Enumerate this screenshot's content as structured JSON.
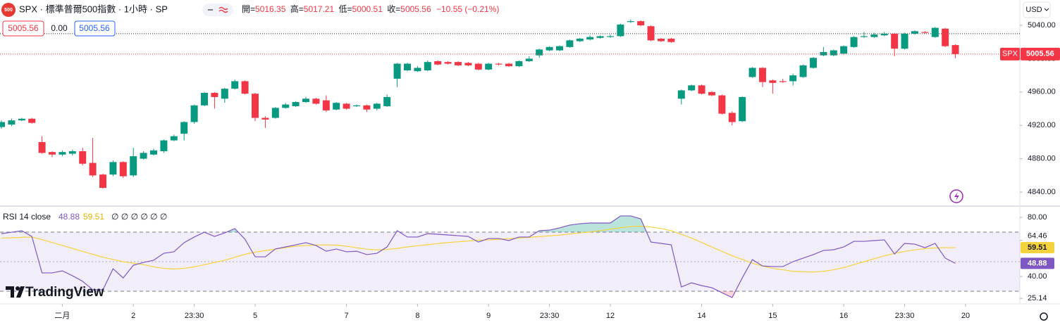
{
  "toolbar": {
    "logo": "500",
    "symbol": "SPX · 標準普爾500指數 · 1小時 · SP",
    "ohlc_labels": [
      "開=",
      "高=",
      "低=",
      "收="
    ],
    "change": "−10.55 (−0.21%)",
    "spread": "0.00",
    "currency": "USD",
    "brand": "TradingView"
  },
  "chart_data": [
    {
      "type": "candlestick",
      "price_tag_label": "SPX",
      "up_color": "#089981",
      "down_color": "#f23645",
      "open": [
        4918,
        4921,
        4926,
        4928,
        4900,
        4888,
        4885,
        4886,
        4889,
        4875,
        4861,
        4861,
        4876,
        4860,
        4880,
        4885,
        4889,
        4902,
        4910,
        4924,
        4944,
        4959,
        4952,
        4964,
        4973,
        4958,
        4929,
        4929,
        4941,
        4943,
        4948,
        4952,
        4950,
        4939,
        4946,
        4943,
        4944,
        4940,
        4943,
        4976,
        4986,
        4985,
        4986,
        4997,
        4996,
        4996,
        4995,
        4994,
        4987,
        4994,
        4994,
        4991,
        4997,
        5004,
        5010,
        5010,
        5014,
        5021,
        5023,
        5025,
        5026,
        5027,
        5044,
        5045,
        5039,
        5024,
        5024,
        4952,
        4962,
        4968,
        4960,
        4956,
        4935,
        4925,
        4978,
        4989,
        4974,
        4973,
        4973,
        4978,
        4989,
        5004,
        5004,
        5006,
        5014,
        5026,
        5026,
        5028,
        5030,
        5012,
        5030,
        5032,
        5026,
        5036,
        5016.35
      ],
      "high": [
        4926,
        4928,
        4929,
        4929,
        4907,
        4889,
        4890,
        4891,
        4893,
        4905,
        4862,
        4878,
        4877,
        4893,
        4889,
        4892,
        4903,
        4909,
        4925,
        4945,
        4960,
        4960,
        4965,
        4975,
        4974,
        4959,
        4931,
        4942,
        4947,
        4949,
        4954,
        4953,
        4956,
        4948,
        4947,
        4945,
        4945,
        4947,
        4957,
        4995,
        4995,
        4991,
        4998,
        4998,
        4997,
        4997,
        4996,
        4995,
        4995,
        4995,
        4995,
        4998,
        5003,
        5012,
        5015,
        5016,
        5023,
        5025,
        5028,
        5028,
        5029,
        5042,
        5047,
        5046,
        5040,
        5025,
        5025,
        4963,
        4969,
        4969,
        4961,
        4957,
        4937,
        4955,
        4990,
        4990,
        4975,
        4976,
        4982,
        4993,
        5002,
        5014,
        5011,
        5016,
        5027,
        5032,
        5031,
        5032,
        5031,
        5031,
        5034,
        5033,
        5038,
        5037,
        5017.21
      ],
      "low": [
        4916,
        4919,
        4925,
        4922,
        4886,
        4882,
        4883,
        4884,
        4872,
        4858,
        4844,
        4859,
        4857,
        4858,
        4879,
        4884,
        4887,
        4901,
        4902,
        4922,
        4943,
        4940,
        4947,
        4963,
        4957,
        4925,
        4917,
        4928,
        4940,
        4942,
        4947,
        4945,
        4936,
        4938,
        4939,
        4942,
        4936,
        4938,
        4942,
        4966,
        4985,
        4984,
        4985,
        4992,
        4993,
        4991,
        4991,
        4986,
        4986,
        4992,
        4990,
        4990,
        4996,
        5001,
        5009,
        5009,
        5013,
        5020,
        5022,
        5024,
        5025,
        5026,
        5043,
        5039,
        5021,
        5020,
        5019,
        4945,
        4961,
        4957,
        4955,
        4933,
        4920,
        4924,
        4977,
        4966,
        4958,
        4971,
        4968,
        4977,
        4988,
        5003,
        5003,
        5005,
        5013,
        5025,
        5025,
        5027,
        5003,
        5011,
        5029,
        5030,
        5025,
        5014,
        5000.51
      ],
      "close": [
        4924,
        4926,
        4928,
        4923,
        4887,
        4885,
        4888,
        4889,
        4874,
        4860,
        4845,
        4876,
        4859,
        4883,
        4887,
        4890,
        4902,
        4907,
        4924,
        4944,
        4959,
        4954,
        4964,
        4973,
        4958,
        4929,
        4927,
        4941,
        4945,
        4948,
        4952,
        4946,
        4938,
        4947,
        4940,
        4944,
        4939,
        4946,
        4954,
        4994,
        4994,
        4989,
        4996,
        4993,
        4994,
        4992,
        4992,
        4987,
        4994,
        4993,
        4991,
        4997,
        5000,
        5011,
        5014,
        5015,
        5022,
        5024,
        5026,
        5027,
        5027,
        5041,
        5045,
        5040,
        5022,
        5021,
        5020,
        4962,
        4968,
        4958,
        4956,
        4934,
        4924,
        4954,
        4989,
        4972,
        4971,
        4972,
        4980,
        4992,
        5001,
        5008,
        5010,
        5015,
        5026,
        5027,
        5029,
        5030,
        5012,
        5030,
        5033,
        5031,
        5037,
        5015,
        5005.56
      ],
      "reference_line": 5030,
      "xlim": [
        -0.14,
        100.35
      ],
      "xticks": [
        {
          "value": 6,
          "label": "二月"
        },
        {
          "value": 13,
          "label": "2"
        },
        {
          "value": 19,
          "label": "23:30"
        },
        {
          "value": 25,
          "label": "5"
        },
        {
          "value": 34,
          "label": "7"
        },
        {
          "value": 41,
          "label": "8"
        },
        {
          "value": 48,
          "label": "9"
        },
        {
          "value": 54,
          "label": "23:30"
        },
        {
          "value": 60,
          "label": "12"
        },
        {
          "value": 69,
          "label": "14"
        },
        {
          "value": 76,
          "label": "15"
        },
        {
          "value": 83,
          "label": "16"
        },
        {
          "value": 89,
          "label": "23:30"
        },
        {
          "value": 95,
          "label": "20"
        }
      ],
      "ylim": [
        4824,
        5070.4
      ],
      "yticks": [
        {
          "value": 5040,
          "label": "5040.00"
        },
        {
          "value": 5000,
          "label": "5000.00"
        },
        {
          "value": 4960,
          "label": "4960.00"
        },
        {
          "value": 4920,
          "label": "4920.00"
        },
        {
          "value": 4880,
          "label": "4880.00"
        },
        {
          "value": 4840,
          "label": "4840.00"
        }
      ]
    },
    {
      "type": "line",
      "title": "RSI 14 close",
      "legend_extra": "∅ ∅ ∅ ∅ ∅ ∅",
      "series": [
        {
          "color": "#7e57c2",
          "values": [
            69,
            70,
            71,
            67.1,
            42.4,
            42.4,
            43.8,
            40.5,
            36.7,
            31,
            31,
            45.2,
            39,
            47.6,
            49.5,
            51,
            55.7,
            56.7,
            62.9,
            66.7,
            70,
            67.1,
            69.5,
            72.4,
            65.2,
            53.3,
            53.3,
            58.6,
            60,
            61.4,
            62.9,
            61,
            57.1,
            58.6,
            56.7,
            57.1,
            54.8,
            55.7,
            60,
            71,
            66.7,
            66.7,
            69,
            68.6,
            68.1,
            67.6,
            67.1,
            63.3,
            65.7,
            65.7,
            64.3,
            66.7,
            66.7,
            71,
            71.4,
            72.9,
            74.8,
            75.7,
            76.2,
            76.2,
            76.2,
            81,
            81,
            79,
            63.3,
            62.4,
            61.4,
            32.9,
            35.7,
            33.8,
            32.4,
            29,
            25.7,
            39,
            51.4,
            47.1,
            46.7,
            46.7,
            50,
            52.4,
            54.8,
            57.6,
            58.1,
            60,
            63.8,
            63.8,
            64.3,
            64.8,
            55.2,
            62.4,
            61.9,
            59.5,
            62.4,
            52.4,
            48.88
          ]
        },
        {
          "color": "#f5d33f",
          "values": [
            66,
            66.2,
            66.5,
            66.7,
            65,
            63,
            61,
            59,
            57,
            55,
            53,
            51.5,
            50,
            49,
            48,
            46.5,
            45.5,
            45,
            45.5,
            46.5,
            48,
            49.5,
            51,
            53,
            55,
            56.5,
            57.5,
            58.5,
            59.5,
            60.5,
            61,
            61.3,
            61.4,
            61.2,
            60.5,
            59.5,
            58.5,
            58,
            58.3,
            59,
            60,
            60.8,
            61.5,
            62.3,
            63,
            63.5,
            64,
            64.5,
            64.8,
            65.2,
            65.6,
            66,
            66.5,
            67,
            67.5,
            68,
            68.8,
            69.5,
            70.2,
            71,
            72,
            73,
            73.8,
            74,
            73.5,
            72.5,
            71,
            68.5,
            66,
            63,
            60,
            57,
            54,
            51.5,
            49,
            47,
            45.5,
            44.5,
            43.5,
            43.2,
            43,
            43.5,
            44.5,
            46,
            48,
            50,
            52,
            54,
            55.5,
            57,
            58,
            58.8,
            59.3,
            59.5,
            59.51
          ]
        }
      ],
      "bands": [
        70,
        50,
        30
      ],
      "xlim": [
        -0.14,
        100.35
      ],
      "ylim": [
        21.4,
        86.7
      ],
      "yticks": [
        {
          "value": 80,
          "label": "80.00"
        },
        {
          "value": 64.46,
          "label": "64.46"
        },
        {
          "value": 40,
          "label": "40.00"
        },
        {
          "value": 25.14,
          "label": "25.14"
        }
      ]
    }
  ]
}
